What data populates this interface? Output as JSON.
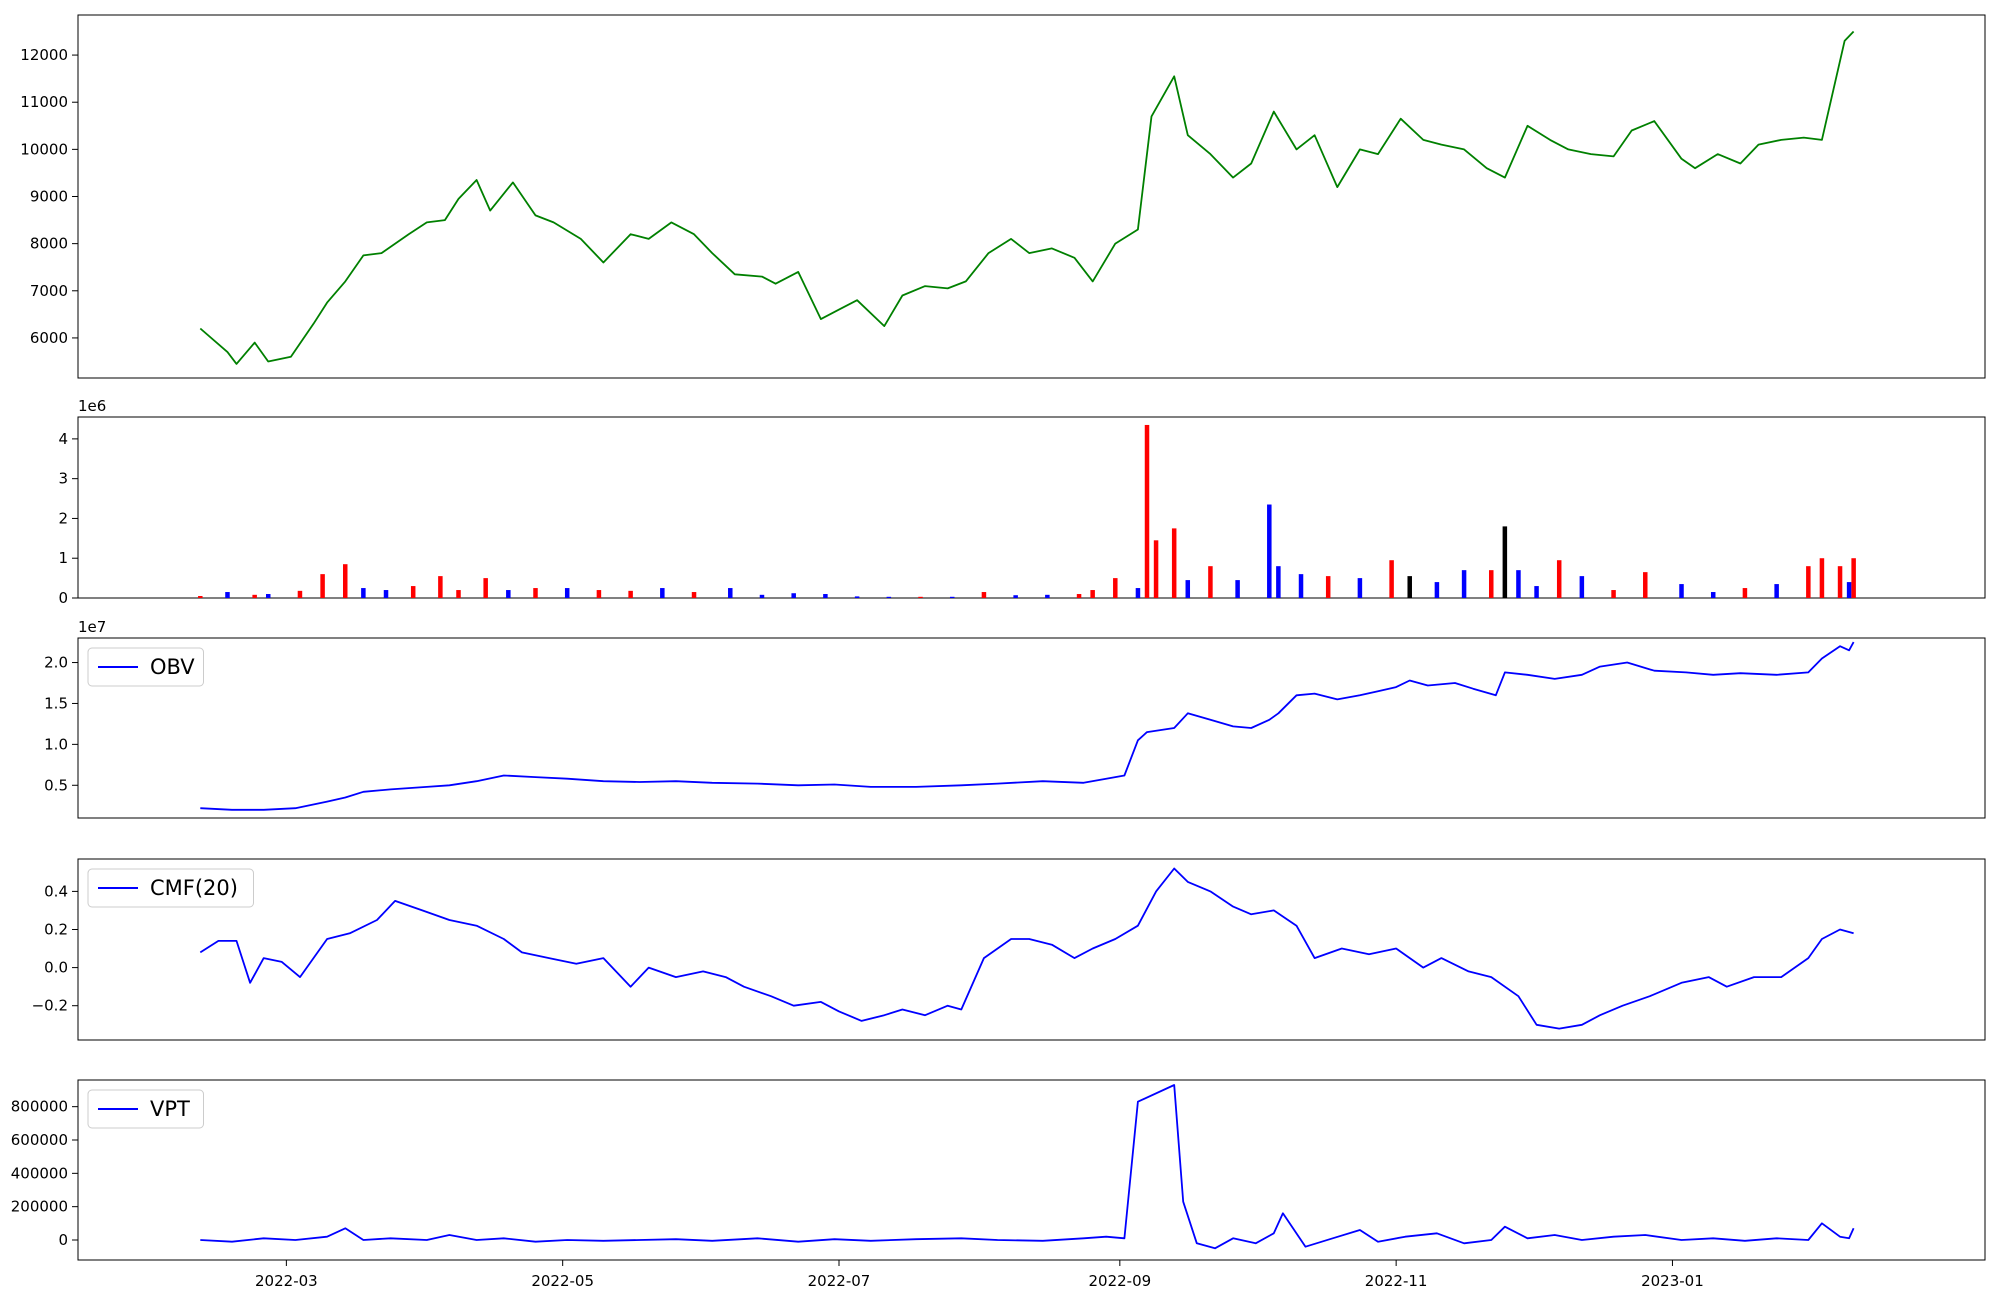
{
  "figure": {
    "x_axis": {
      "type": "date",
      "range": [
        "2022-01-14",
        "2023-03-11"
      ],
      "ticks": [
        "2022-03-01",
        "2022-05-01",
        "2022-07-01",
        "2022-09-01",
        "2022-11-01",
        "2023-01-01"
      ],
      "tick_labels": [
        "2022-03",
        "2022-05",
        "2022-07",
        "2022-09",
        "2022-11",
        "2023-01"
      ]
    }
  },
  "chart_data": [
    {
      "type": "line",
      "panel": "price",
      "color": "#008000",
      "ylim": [
        5150,
        12850
      ],
      "yticks": [
        6000,
        7000,
        8000,
        9000,
        10000,
        11000,
        12000
      ],
      "ytick_labels": [
        "6000",
        "7000",
        "8000",
        "9000",
        "10000",
        "11000",
        "12000"
      ],
      "x": [
        "2022-02-10",
        "2022-02-16",
        "2022-02-18",
        "2022-02-22",
        "2022-02-25",
        "2022-03-02",
        "2022-03-07",
        "2022-03-10",
        "2022-03-14",
        "2022-03-18",
        "2022-03-22",
        "2022-03-28",
        "2022-04-01",
        "2022-04-05",
        "2022-04-08",
        "2022-04-12",
        "2022-04-15",
        "2022-04-20",
        "2022-04-25",
        "2022-04-29",
        "2022-05-05",
        "2022-05-10",
        "2022-05-16",
        "2022-05-20",
        "2022-05-25",
        "2022-05-30",
        "2022-06-03",
        "2022-06-08",
        "2022-06-14",
        "2022-06-17",
        "2022-06-22",
        "2022-06-27",
        "2022-07-01",
        "2022-07-05",
        "2022-07-11",
        "2022-07-15",
        "2022-07-20",
        "2022-07-25",
        "2022-07-29",
        "2022-08-03",
        "2022-08-08",
        "2022-08-12",
        "2022-08-17",
        "2022-08-22",
        "2022-08-26",
        "2022-08-31",
        "2022-09-05",
        "2022-09-08",
        "2022-09-13",
        "2022-09-16",
        "2022-09-21",
        "2022-09-26",
        "2022-09-30",
        "2022-10-05",
        "2022-10-10",
        "2022-10-14",
        "2022-10-19",
        "2022-10-24",
        "2022-10-28",
        "2022-11-02",
        "2022-11-07",
        "2022-11-11",
        "2022-11-16",
        "2022-11-21",
        "2022-11-25",
        "2022-11-30",
        "2022-12-05",
        "2022-12-09",
        "2022-12-14",
        "2022-12-19",
        "2022-12-23",
        "2022-12-28",
        "2023-01-03",
        "2023-01-06",
        "2023-01-11",
        "2023-01-16",
        "2023-01-20",
        "2023-01-25",
        "2023-01-30",
        "2023-02-03",
        "2023-02-08",
        "2023-02-10"
      ],
      "values": [
        6200,
        5700,
        5450,
        5900,
        5500,
        5600,
        6300,
        6750,
        7200,
        7750,
        7800,
        8200,
        8450,
        8500,
        8950,
        9350,
        8700,
        9300,
        8600,
        8450,
        8100,
        7600,
        8200,
        8100,
        8450,
        8200,
        7800,
        7350,
        7300,
        7150,
        7400,
        6400,
        6600,
        6800,
        6250,
        6900,
        7100,
        7050,
        7200,
        7800,
        8100,
        7800,
        7900,
        7700,
        7200,
        8000,
        8300,
        10700,
        11550,
        10300,
        9900,
        9400,
        9700,
        10800,
        10000,
        10300,
        9200,
        10000,
        9900,
        10650,
        10200,
        10100,
        10000,
        9600,
        9400,
        10500,
        10200,
        10000,
        9900,
        9850,
        10400,
        10600,
        9800,
        9600,
        9900,
        9700,
        10100,
        10200,
        10250,
        10200,
        12300,
        12500
      ]
    },
    {
      "type": "bar",
      "panel": "volume",
      "multiplier_label": "1e6",
      "ylim": [
        0,
        4.55
      ],
      "yticks": [
        0,
        1,
        2,
        3,
        4
      ],
      "ytick_labels": [
        "0",
        "1",
        "2",
        "3",
        "4"
      ],
      "colors": {
        "up": "#ff0000",
        "down": "#0000ff",
        "flat": "#000000"
      },
      "x": [
        "2022-02-10",
        "2022-02-16",
        "2022-02-22",
        "2022-02-25",
        "2022-03-04",
        "2022-03-09",
        "2022-03-14",
        "2022-03-18",
        "2022-03-23",
        "2022-03-29",
        "2022-04-04",
        "2022-04-08",
        "2022-04-14",
        "2022-04-19",
        "2022-04-25",
        "2022-05-02",
        "2022-05-09",
        "2022-05-16",
        "2022-05-23",
        "2022-05-30",
        "2022-06-07",
        "2022-06-14",
        "2022-06-21",
        "2022-06-28",
        "2022-07-05",
        "2022-07-12",
        "2022-07-19",
        "2022-07-26",
        "2022-08-02",
        "2022-08-09",
        "2022-08-16",
        "2022-08-23",
        "2022-08-26",
        "2022-08-31",
        "2022-09-05",
        "2022-09-07",
        "2022-09-09",
        "2022-09-13",
        "2022-09-16",
        "2022-09-21",
        "2022-09-27",
        "2022-10-04",
        "2022-10-06",
        "2022-10-11",
        "2022-10-17",
        "2022-10-24",
        "2022-10-31",
        "2022-11-04",
        "2022-11-10",
        "2022-11-16",
        "2022-11-22",
        "2022-11-25",
        "2022-11-28",
        "2022-12-02",
        "2022-12-07",
        "2022-12-12",
        "2022-12-19",
        "2022-12-26",
        "2023-01-03",
        "2023-01-10",
        "2023-01-17",
        "2023-01-24",
        "2023-01-31",
        "2023-02-03",
        "2023-02-07",
        "2023-02-09",
        "2023-02-10"
      ],
      "values": [
        0.05,
        0.15,
        0.08,
        0.1,
        0.18,
        0.6,
        0.85,
        0.25,
        0.2,
        0.3,
        0.55,
        0.2,
        0.5,
        0.2,
        0.25,
        0.25,
        0.2,
        0.18,
        0.25,
        0.15,
        0.25,
        0.08,
        0.12,
        0.1,
        0.04,
        0.03,
        0.03,
        0.03,
        0.15,
        0.07,
        0.08,
        0.1,
        0.2,
        0.5,
        0.25,
        4.35,
        1.45,
        1.75,
        0.45,
        0.8,
        0.45,
        2.35,
        0.8,
        0.6,
        0.55,
        0.5,
        0.95,
        0.55,
        0.4,
        0.7,
        0.7,
        1.8,
        0.7,
        0.3,
        0.95,
        0.55,
        0.2,
        0.65,
        0.35,
        0.15,
        0.25,
        0.35,
        0.8,
        1.0,
        0.8,
        0.4,
        1.0
      ],
      "direction": [
        "up",
        "down",
        "up",
        "down",
        "up",
        "up",
        "up",
        "down",
        "down",
        "up",
        "up",
        "up",
        "up",
        "down",
        "up",
        "down",
        "up",
        "up",
        "down",
        "up",
        "down",
        "down",
        "down",
        "down",
        "down",
        "down",
        "up",
        "down",
        "up",
        "down",
        "down",
        "up",
        "up",
        "up",
        "down",
        "up",
        "up",
        "up",
        "down",
        "up",
        "down",
        "down",
        "down",
        "down",
        "up",
        "down",
        "up",
        "flat",
        "down",
        "down",
        "up",
        "flat",
        "down",
        "down",
        "up",
        "down",
        "up",
        "up",
        "down",
        "down",
        "up",
        "down",
        "up",
        "up",
        "up",
        "down",
        "up"
      ]
    },
    {
      "type": "line",
      "panel": "obv",
      "multiplier_label": "1e7",
      "color": "#0000ff",
      "legend": "OBV",
      "legend_loc": "upper left",
      "ylim": [
        0.1,
        2.3
      ],
      "yticks": [
        0.5,
        1.0,
        1.5,
        2.0
      ],
      "ytick_labels": [
        "0.5",
        "1.0",
        "1.5",
        "2.0"
      ],
      "x": [
        "2022-02-10",
        "2022-02-17",
        "2022-02-24",
        "2022-03-03",
        "2022-03-10",
        "2022-03-14",
        "2022-03-18",
        "2022-03-24",
        "2022-04-01",
        "2022-04-06",
        "2022-04-12",
        "2022-04-18",
        "2022-04-25",
        "2022-05-02",
        "2022-05-10",
        "2022-05-18",
        "2022-05-26",
        "2022-06-03",
        "2022-06-13",
        "2022-06-22",
        "2022-06-30",
        "2022-07-08",
        "2022-07-18",
        "2022-07-28",
        "2022-08-05",
        "2022-08-15",
        "2022-08-24",
        "2022-08-29",
        "2022-09-02",
        "2022-09-05",
        "2022-09-07",
        "2022-09-13",
        "2022-09-16",
        "2022-09-21",
        "2022-09-26",
        "2022-09-30",
        "2022-10-04",
        "2022-10-06",
        "2022-10-10",
        "2022-10-14",
        "2022-10-19",
        "2022-10-24",
        "2022-10-28",
        "2022-11-01",
        "2022-11-04",
        "2022-11-08",
        "2022-11-14",
        "2022-11-18",
        "2022-11-23",
        "2022-11-25",
        "2022-11-30",
        "2022-12-06",
        "2022-12-12",
        "2022-12-16",
        "2022-12-22",
        "2022-12-28",
        "2023-01-04",
        "2023-01-10",
        "2023-01-16",
        "2023-01-24",
        "2023-01-31",
        "2023-02-03",
        "2023-02-07",
        "2023-02-09",
        "2023-02-10"
      ],
      "values": [
        0.22,
        0.2,
        0.2,
        0.22,
        0.3,
        0.35,
        0.42,
        0.45,
        0.48,
        0.5,
        0.55,
        0.62,
        0.6,
        0.58,
        0.55,
        0.54,
        0.55,
        0.53,
        0.52,
        0.5,
        0.51,
        0.48,
        0.48,
        0.5,
        0.52,
        0.55,
        0.53,
        0.58,
        0.62,
        1.05,
        1.15,
        1.2,
        1.38,
        1.3,
        1.22,
        1.2,
        1.3,
        1.38,
        1.6,
        1.62,
        1.55,
        1.6,
        1.65,
        1.7,
        1.78,
        1.72,
        1.75,
        1.68,
        1.6,
        1.88,
        1.85,
        1.8,
        1.85,
        1.95,
        2.0,
        1.9,
        1.88,
        1.85,
        1.87,
        1.85,
        1.88,
        2.05,
        2.2,
        2.15,
        2.25
      ]
    },
    {
      "type": "line",
      "panel": "cmf",
      "color": "#0000ff",
      "legend": "CMF(20)",
      "legend_loc": "upper left",
      "ylim": [
        -0.38,
        0.57
      ],
      "yticks": [
        -0.2,
        0.0,
        0.2,
        0.4
      ],
      "ytick_labels": [
        "−0.2",
        "0.0",
        "0.2",
        "0.4"
      ],
      "x": [
        "2022-02-10",
        "2022-02-14",
        "2022-02-18",
        "2022-02-21",
        "2022-02-24",
        "2022-02-28",
        "2022-03-04",
        "2022-03-10",
        "2022-03-15",
        "2022-03-21",
        "2022-03-25",
        "2022-03-31",
        "2022-04-06",
        "2022-04-12",
        "2022-04-18",
        "2022-04-22",
        "2022-04-28",
        "2022-05-04",
        "2022-05-10",
        "2022-05-16",
        "2022-05-20",
        "2022-05-26",
        "2022-06-01",
        "2022-06-06",
        "2022-06-10",
        "2022-06-16",
        "2022-06-21",
        "2022-06-27",
        "2022-07-01",
        "2022-07-06",
        "2022-07-11",
        "2022-07-15",
        "2022-07-20",
        "2022-07-25",
        "2022-07-28",
        "2022-08-02",
        "2022-08-08",
        "2022-08-12",
        "2022-08-17",
        "2022-08-22",
        "2022-08-26",
        "2022-08-31",
        "2022-09-05",
        "2022-09-09",
        "2022-09-13",
        "2022-09-16",
        "2022-09-21",
        "2022-09-26",
        "2022-09-30",
        "2022-10-05",
        "2022-10-10",
        "2022-10-14",
        "2022-10-20",
        "2022-10-26",
        "2022-11-01",
        "2022-11-07",
        "2022-11-11",
        "2022-11-17",
        "2022-11-22",
        "2022-11-28",
        "2022-12-02",
        "2022-12-07",
        "2022-12-12",
        "2022-12-16",
        "2022-12-21",
        "2022-12-27",
        "2023-01-03",
        "2023-01-09",
        "2023-01-13",
        "2023-01-19",
        "2023-01-25",
        "2023-01-31",
        "2023-02-03",
        "2023-02-07",
        "2023-02-10"
      ],
      "values": [
        0.08,
        0.14,
        0.14,
        -0.08,
        0.05,
        0.03,
        -0.05,
        0.15,
        0.18,
        0.25,
        0.35,
        0.3,
        0.25,
        0.22,
        0.15,
        0.08,
        0.05,
        0.02,
        0.05,
        -0.1,
        0.0,
        -0.05,
        -0.02,
        -0.05,
        -0.1,
        -0.15,
        -0.2,
        -0.18,
        -0.23,
        -0.28,
        -0.25,
        -0.22,
        -0.25,
        -0.2,
        -0.22,
        0.05,
        0.15,
        0.15,
        0.12,
        0.05,
        0.1,
        0.15,
        0.22,
        0.4,
        0.52,
        0.45,
        0.4,
        0.32,
        0.28,
        0.3,
        0.22,
        0.05,
        0.1,
        0.07,
        0.1,
        0.0,
        0.05,
        -0.02,
        -0.05,
        -0.15,
        -0.3,
        -0.32,
        -0.3,
        -0.25,
        -0.2,
        -0.15,
        -0.08,
        -0.05,
        -0.1,
        -0.05,
        -0.05,
        0.05,
        0.15,
        0.2,
        0.18
      ]
    },
    {
      "type": "line",
      "panel": "vpt",
      "color": "#0000ff",
      "legend": "VPT",
      "legend_loc": "upper left",
      "ylim": [
        -120000,
        960000
      ],
      "yticks": [
        0,
        200000,
        400000,
        600000,
        800000
      ],
      "ytick_labels": [
        "0",
        "200000",
        "400000",
        "600000",
        "800000"
      ],
      "x": [
        "2022-02-10",
        "2022-02-17",
        "2022-02-24",
        "2022-03-03",
        "2022-03-10",
        "2022-03-14",
        "2022-03-18",
        "2022-03-24",
        "2022-04-01",
        "2022-04-06",
        "2022-04-12",
        "2022-04-18",
        "2022-04-25",
        "2022-05-02",
        "2022-05-10",
        "2022-05-18",
        "2022-05-26",
        "2022-06-03",
        "2022-06-13",
        "2022-06-22",
        "2022-06-30",
        "2022-07-08",
        "2022-07-18",
        "2022-07-28",
        "2022-08-05",
        "2022-08-15",
        "2022-08-24",
        "2022-08-29",
        "2022-09-02",
        "2022-09-05",
        "2022-09-13",
        "2022-09-15",
        "2022-09-18",
        "2022-09-22",
        "2022-09-26",
        "2022-10-01",
        "2022-10-05",
        "2022-10-07",
        "2022-10-12",
        "2022-10-18",
        "2022-10-24",
        "2022-10-28",
        "2022-11-03",
        "2022-11-10",
        "2022-11-16",
        "2022-11-22",
        "2022-11-25",
        "2022-11-30",
        "2022-12-06",
        "2022-12-12",
        "2022-12-19",
        "2022-12-26",
        "2023-01-03",
        "2023-01-10",
        "2023-01-17",
        "2023-01-24",
        "2023-01-31",
        "2023-02-03",
        "2023-02-07",
        "2023-02-09",
        "2023-02-10"
      ],
      "values": [
        0,
        -10000,
        10000,
        0,
        20000,
        70000,
        0,
        10000,
        0,
        30000,
        0,
        10000,
        -10000,
        0,
        -5000,
        0,
        5000,
        -5000,
        10000,
        -10000,
        5000,
        -5000,
        5000,
        10000,
        0,
        -5000,
        10000,
        20000,
        10000,
        830000,
        930000,
        230000,
        -20000,
        -50000,
        10000,
        -20000,
        40000,
        160000,
        -40000,
        10000,
        60000,
        -10000,
        20000,
        40000,
        -20000,
        0,
        80000,
        10000,
        30000,
        0,
        20000,
        30000,
        0,
        10000,
        -5000,
        10000,
        0,
        100000,
        20000,
        10000,
        70000
      ]
    }
  ]
}
